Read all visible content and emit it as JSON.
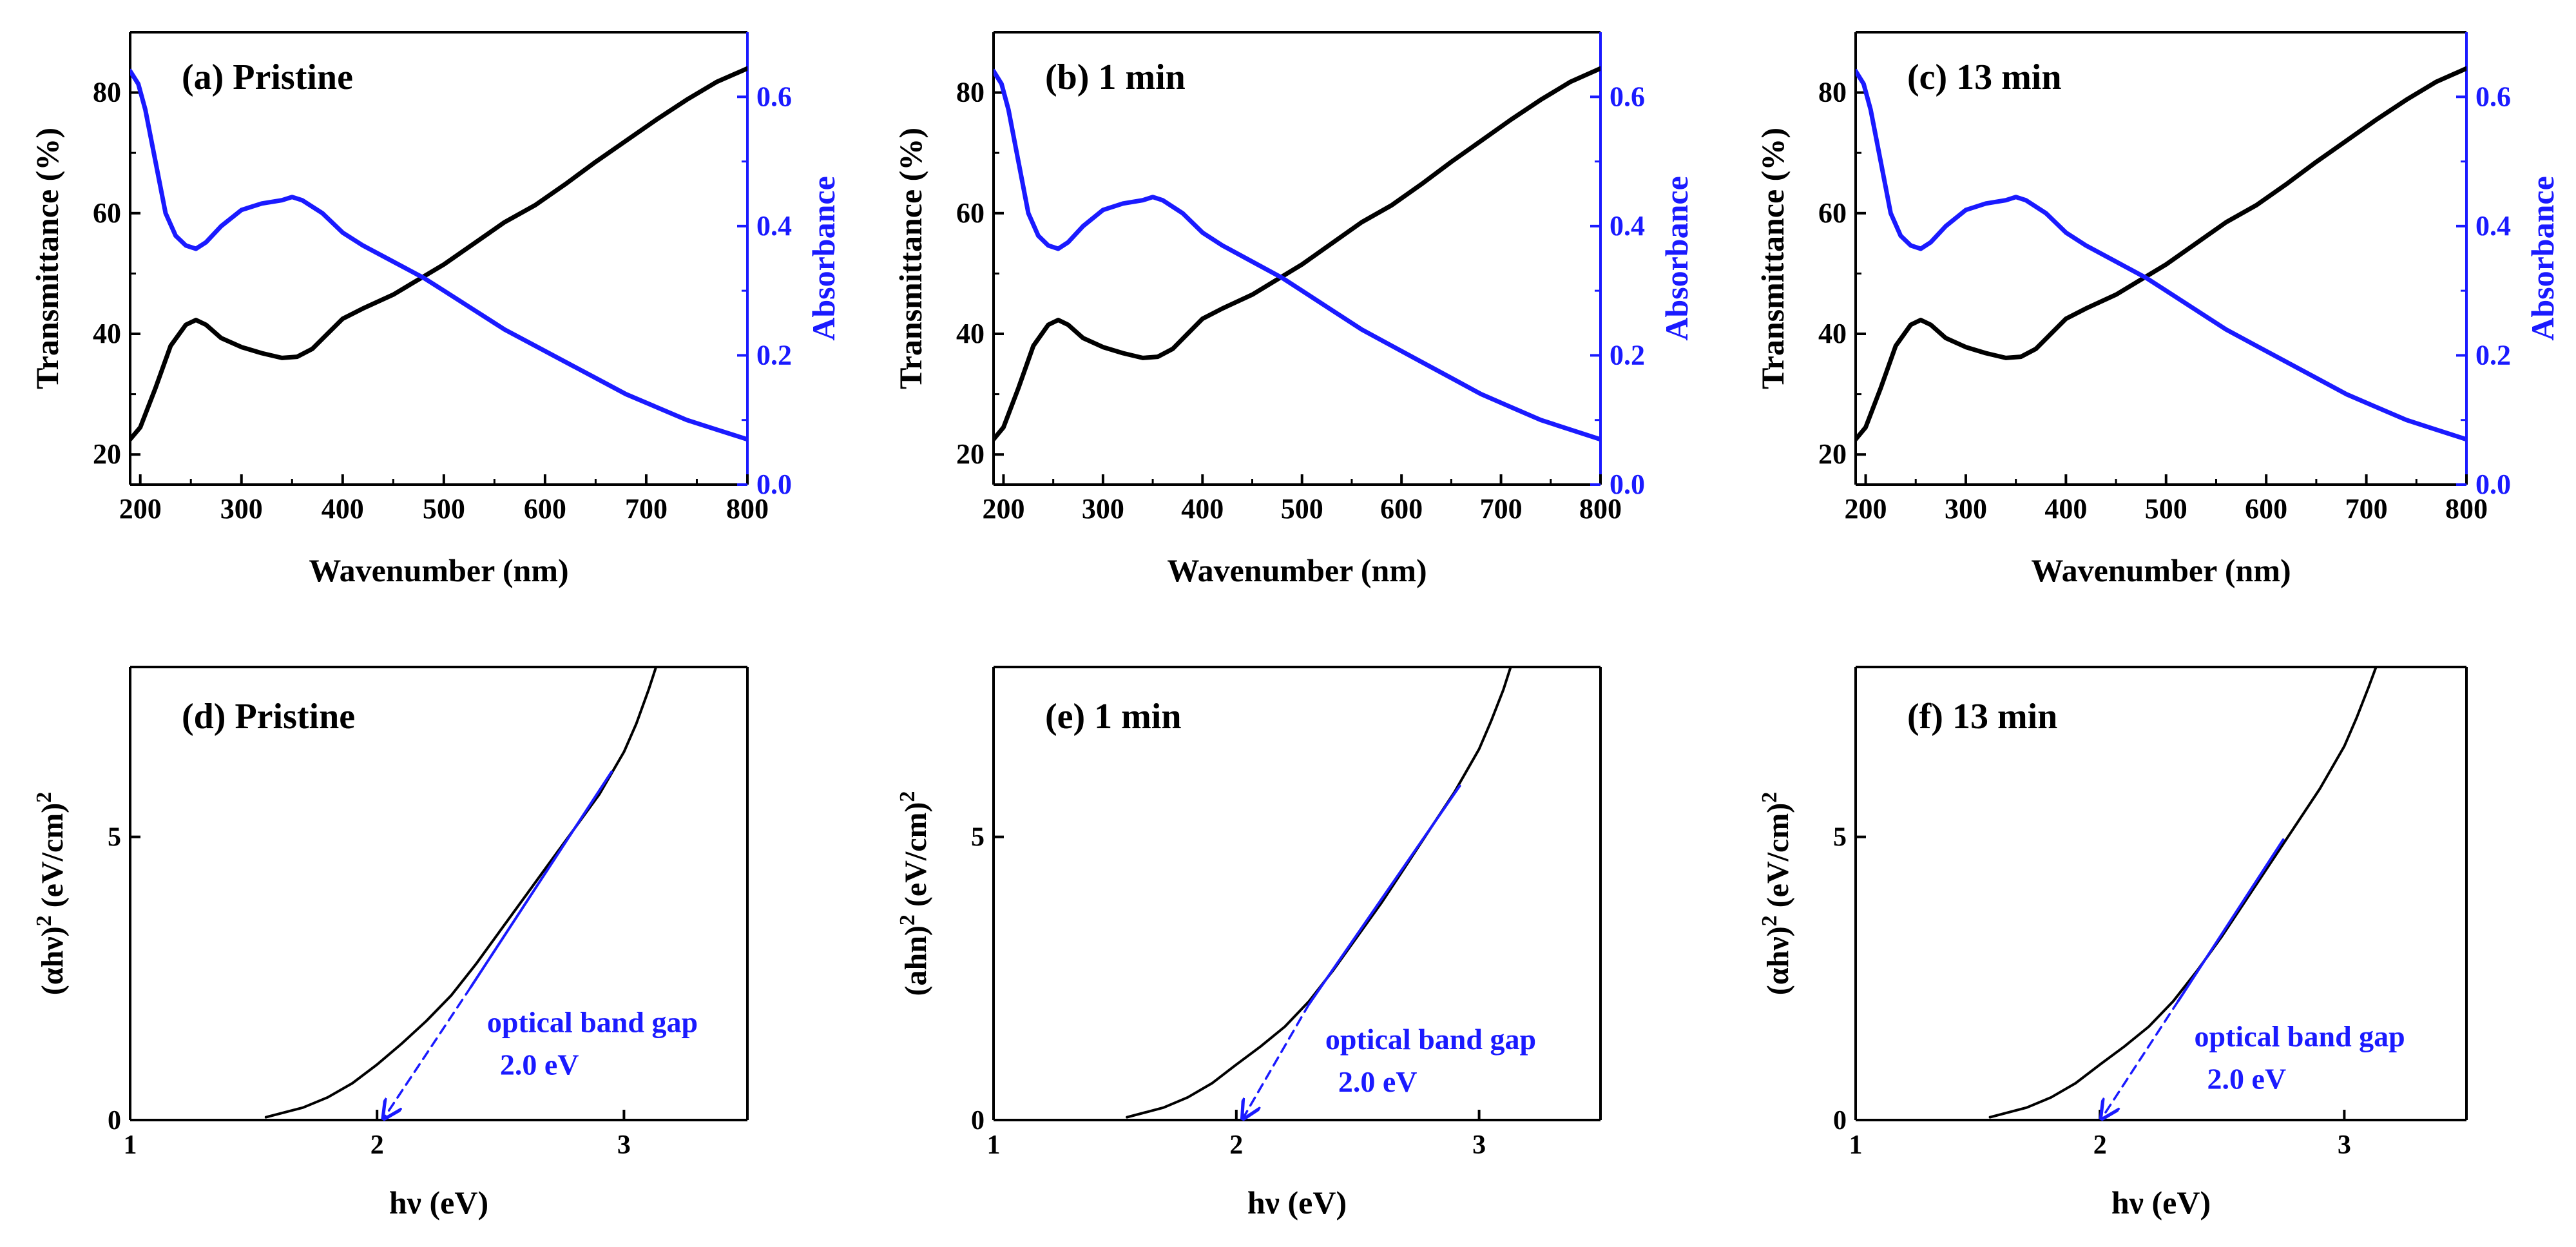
{
  "figure": {
    "colors": {
      "black": "#000000",
      "blue": "#1a1aff"
    }
  },
  "chart_data": [
    {
      "id": "a",
      "type": "line",
      "panel_label": "(a) Pristine",
      "xlabel": "Wavenumber (nm)",
      "ylabel": "Transmittance (%)",
      "y2label": "Absorbance",
      "xlim": [
        190,
        800
      ],
      "ylim": [
        15,
        90
      ],
      "y2lim": [
        0,
        0.7
      ],
      "xticks": [
        200,
        300,
        400,
        500,
        600,
        700,
        800
      ],
      "yticks": [
        20,
        40,
        60,
        80
      ],
      "y2ticks": [
        0.0,
        0.2,
        0.4,
        0.6
      ],
      "y2tick_labels": [
        "0.0",
        "0.2",
        "0.4",
        "0.6"
      ],
      "series": [
        {
          "name": "Transmittance",
          "axis": "left",
          "color": "#000000",
          "x": [
            190,
            200,
            215,
            230,
            245,
            255,
            265,
            280,
            300,
            320,
            340,
            355,
            370,
            385,
            400,
            420,
            450,
            480,
            500,
            530,
            560,
            590,
            620,
            650,
            680,
            710,
            740,
            770,
            800
          ],
          "y": [
            22.5,
            24.5,
            31,
            38,
            41.5,
            42.3,
            41.5,
            39.3,
            37.8,
            36.8,
            36,
            36.2,
            37.5,
            40,
            42.5,
            44.2,
            46.5,
            49.5,
            51.5,
            55,
            58.5,
            61.3,
            64.8,
            68.5,
            72,
            75.5,
            78.8,
            81.8,
            84
          ]
        },
        {
          "name": "Absorbance",
          "axis": "right",
          "color": "#1a1aff",
          "x": [
            190,
            198,
            205,
            215,
            225,
            235,
            245,
            255,
            265,
            280,
            300,
            320,
            340,
            350,
            360,
            380,
            400,
            420,
            450,
            480,
            500,
            530,
            560,
            590,
            620,
            650,
            680,
            710,
            740,
            770,
            800
          ],
          "y": [
            0.64,
            0.62,
            0.58,
            0.5,
            0.42,
            0.385,
            0.37,
            0.365,
            0.375,
            0.4,
            0.425,
            0.435,
            0.44,
            0.445,
            0.44,
            0.42,
            0.39,
            0.37,
            0.345,
            0.32,
            0.3,
            0.27,
            0.24,
            0.215,
            0.19,
            0.165,
            0.14,
            0.12,
            0.1,
            0.085,
            0.07
          ]
        }
      ]
    },
    {
      "id": "b",
      "type": "line",
      "panel_label": "(b) 1 min",
      "xlabel": "Wavenumber (nm)",
      "ylabel": "Transmittance (%)",
      "y2label": "Absorbance",
      "xlim": [
        190,
        800
      ],
      "ylim": [
        15,
        90
      ],
      "y2lim": [
        0,
        0.7
      ],
      "xticks": [
        200,
        300,
        400,
        500,
        600,
        700,
        800
      ],
      "yticks": [
        20,
        40,
        60,
        80
      ],
      "y2ticks": [
        0.0,
        0.2,
        0.4,
        0.6
      ],
      "y2tick_labels": [
        "0.0",
        "0.2",
        "0.4",
        "0.6"
      ],
      "series": [
        {
          "name": "Transmittance",
          "axis": "left",
          "color": "#000000",
          "x": [
            190,
            200,
            215,
            230,
            245,
            255,
            265,
            280,
            300,
            320,
            340,
            355,
            370,
            385,
            400,
            420,
            450,
            480,
            500,
            530,
            560,
            590,
            620,
            650,
            680,
            710,
            740,
            770,
            800
          ],
          "y": [
            22.5,
            24.5,
            31,
            38,
            41.5,
            42.3,
            41.5,
            39.3,
            37.8,
            36.8,
            36,
            36.2,
            37.5,
            40,
            42.5,
            44.2,
            46.5,
            49.5,
            51.5,
            55,
            58.5,
            61.3,
            64.8,
            68.5,
            72,
            75.5,
            78.8,
            81.8,
            84
          ]
        },
        {
          "name": "Absorbance",
          "axis": "right",
          "color": "#1a1aff",
          "x": [
            190,
            198,
            205,
            215,
            225,
            235,
            245,
            255,
            265,
            280,
            300,
            320,
            340,
            350,
            360,
            380,
            400,
            420,
            450,
            480,
            500,
            530,
            560,
            590,
            620,
            650,
            680,
            710,
            740,
            770,
            800
          ],
          "y": [
            0.64,
            0.62,
            0.58,
            0.5,
            0.42,
            0.385,
            0.37,
            0.365,
            0.375,
            0.4,
            0.425,
            0.435,
            0.44,
            0.445,
            0.44,
            0.42,
            0.39,
            0.37,
            0.345,
            0.32,
            0.3,
            0.27,
            0.24,
            0.215,
            0.19,
            0.165,
            0.14,
            0.12,
            0.1,
            0.085,
            0.07
          ]
        }
      ]
    },
    {
      "id": "c",
      "type": "line",
      "panel_label": "(c) 13 min",
      "xlabel": "Wavenumber (nm)",
      "ylabel": "Transmittance (%)",
      "y2label": "Absorbance",
      "xlim": [
        190,
        800
      ],
      "ylim": [
        15,
        90
      ],
      "y2lim": [
        0,
        0.7
      ],
      "xticks": [
        200,
        300,
        400,
        500,
        600,
        700,
        800
      ],
      "yticks": [
        20,
        40,
        60,
        80
      ],
      "y2ticks": [
        0.0,
        0.2,
        0.4,
        0.6
      ],
      "y2tick_labels": [
        "0.0",
        "0.2",
        "0.4",
        "0.6"
      ],
      "series": [
        {
          "name": "Transmittance",
          "axis": "left",
          "color": "#000000",
          "x": [
            190,
            200,
            215,
            230,
            245,
            255,
            265,
            280,
            300,
            320,
            340,
            355,
            370,
            385,
            400,
            420,
            450,
            480,
            500,
            530,
            560,
            590,
            620,
            650,
            680,
            710,
            740,
            770,
            800
          ],
          "y": [
            22.5,
            24.5,
            31,
            38,
            41.5,
            42.3,
            41.5,
            39.3,
            37.8,
            36.8,
            36,
            36.2,
            37.5,
            40,
            42.5,
            44.2,
            46.5,
            49.5,
            51.5,
            55,
            58.5,
            61.3,
            64.8,
            68.5,
            72,
            75.5,
            78.8,
            81.8,
            84
          ]
        },
        {
          "name": "Absorbance",
          "axis": "right",
          "color": "#1a1aff",
          "x": [
            190,
            198,
            205,
            215,
            225,
            235,
            245,
            255,
            265,
            280,
            300,
            320,
            340,
            350,
            360,
            380,
            400,
            420,
            450,
            480,
            500,
            530,
            560,
            590,
            620,
            650,
            680,
            710,
            740,
            770,
            800
          ],
          "y": [
            0.64,
            0.62,
            0.58,
            0.5,
            0.42,
            0.385,
            0.37,
            0.365,
            0.375,
            0.4,
            0.425,
            0.435,
            0.44,
            0.445,
            0.44,
            0.42,
            0.39,
            0.37,
            0.345,
            0.32,
            0.3,
            0.27,
            0.24,
            0.215,
            0.19,
            0.165,
            0.14,
            0.12,
            0.1,
            0.085,
            0.07
          ]
        }
      ]
    },
    {
      "id": "d",
      "type": "line",
      "panel_label": "(d) Pristine",
      "xlabel": "hν (eV)",
      "ylabel": "(αhν)² (eV/cm)²",
      "ylabel_parts": [
        "(αhν)",
        "2",
        " (eV/cm)",
        "2"
      ],
      "xlim": [
        1,
        3.5
      ],
      "ylim": [
        0,
        8
      ],
      "xticks": [
        1,
        2,
        3
      ],
      "yticks": [
        0,
        5
      ],
      "annotation": [
        "optical band gap",
        "2.0 eV"
      ],
      "series": [
        {
          "name": "Tauc plot",
          "color": "#000000",
          "x": [
            1.55,
            1.7,
            1.8,
            1.9,
            2.0,
            2.1,
            2.2,
            2.3,
            2.4,
            2.5,
            2.6,
            2.7,
            2.8,
            2.9,
            3.0,
            3.05,
            3.1,
            3.13
          ],
          "y": [
            0.05,
            0.22,
            0.4,
            0.65,
            0.98,
            1.35,
            1.75,
            2.2,
            2.75,
            3.35,
            3.95,
            4.55,
            5.15,
            5.75,
            6.5,
            7.0,
            7.6,
            8.0
          ]
        },
        {
          "name": "Linear fit",
          "color": "#1a1aff",
          "style": "solid",
          "x": [
            2.38,
            2.95
          ],
          "y": [
            2.35,
            6.15
          ]
        },
        {
          "name": "Extrapolation",
          "color": "#1a1aff",
          "style": "dashed-arrow",
          "x": [
            2.38,
            2.03
          ],
          "y": [
            2.35,
            0.05
          ]
        }
      ]
    },
    {
      "id": "e",
      "type": "line",
      "panel_label": "(e) 1 min",
      "xlabel": "hν (eV)",
      "ylabel": "(ahn)² (eV/cm)²",
      "ylabel_parts": [
        "(ahn)",
        "2",
        " (eV/cm)",
        "2"
      ],
      "xlim": [
        1,
        3.5
      ],
      "ylim": [
        0,
        8
      ],
      "xticks": [
        1,
        2,
        3
      ],
      "yticks": [
        0,
        5
      ],
      "annotation": [
        "optical band gap",
        "2.0 eV"
      ],
      "series": [
        {
          "name": "Tauc plot",
          "color": "#000000",
          "x": [
            1.55,
            1.7,
            1.8,
            1.9,
            2.0,
            2.1,
            2.2,
            2.3,
            2.4,
            2.5,
            2.6,
            2.7,
            2.8,
            2.9,
            3.0,
            3.05,
            3.1,
            3.13
          ],
          "y": [
            0.05,
            0.22,
            0.4,
            0.65,
            0.98,
            1.3,
            1.65,
            2.1,
            2.65,
            3.25,
            3.85,
            4.5,
            5.15,
            5.8,
            6.55,
            7.05,
            7.6,
            8.0
          ]
        },
        {
          "name": "Linear fit",
          "color": "#1a1aff",
          "style": "solid",
          "x": [
            2.3,
            2.92
          ],
          "y": [
            2.05,
            5.9
          ]
        },
        {
          "name": "Extrapolation",
          "color": "#1a1aff",
          "style": "dashed-arrow",
          "x": [
            2.3,
            2.03
          ],
          "y": [
            2.05,
            0.05
          ]
        }
      ]
    },
    {
      "id": "f",
      "type": "line",
      "panel_label": "(f) 13 min",
      "xlabel": "hν (eV)",
      "ylabel": "(αhν)² (eV/cm)²",
      "ylabel_parts": [
        "(αhν)",
        "2",
        " (eV/cm)",
        "2"
      ],
      "xlim": [
        1,
        3.5
      ],
      "ylim": [
        0,
        8
      ],
      "xticks": [
        1,
        2,
        3
      ],
      "yticks": [
        0,
        5
      ],
      "annotation": [
        "optical band gap",
        "2.0 eV"
      ],
      "series": [
        {
          "name": "Tauc plot",
          "color": "#000000",
          "x": [
            1.55,
            1.7,
            1.8,
            1.9,
            2.0,
            2.1,
            2.2,
            2.3,
            2.4,
            2.5,
            2.6,
            2.7,
            2.8,
            2.9,
            3.0,
            3.05,
            3.1,
            3.13
          ],
          "y": [
            0.05,
            0.22,
            0.4,
            0.65,
            0.98,
            1.3,
            1.65,
            2.1,
            2.65,
            3.25,
            3.9,
            4.55,
            5.2,
            5.85,
            6.6,
            7.1,
            7.65,
            8.0
          ]
        },
        {
          "name": "Linear fit",
          "color": "#1a1aff",
          "style": "solid",
          "x": [
            2.32,
            2.75
          ],
          "y": [
            2.1,
            4.95
          ]
        },
        {
          "name": "Extrapolation",
          "color": "#1a1aff",
          "style": "dashed-arrow",
          "x": [
            2.32,
            2.01
          ],
          "y": [
            2.1,
            0.05
          ]
        }
      ]
    }
  ]
}
